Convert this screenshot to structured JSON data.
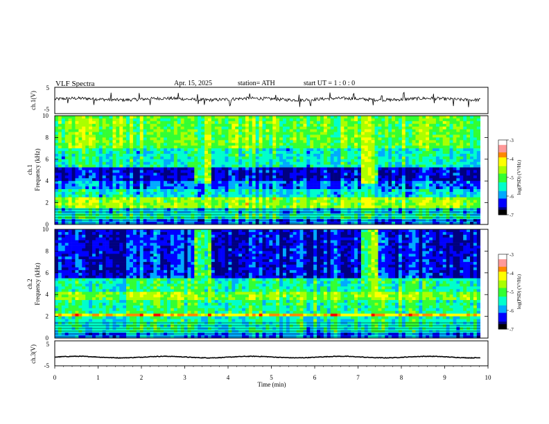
{
  "header": {
    "title": "VLF  Spectra",
    "date": "Apr. 15, 2025",
    "station": "station= ATH",
    "start": "start  UT  =    1  : 0  : 0"
  },
  "colors": {
    "spectrogram_scale": [
      "#000080",
      "#0000ff",
      "#00aaff",
      "#00ffcc",
      "#33ff33",
      "#aaff00",
      "#ffff00",
      "#ff8800",
      "#ff0000",
      "#ffffff"
    ],
    "waveform": "#000000"
  },
  "chart_data": [
    {
      "type": "line",
      "name": "ch1-waveform",
      "ylabel": "ch.1(V)",
      "ylim": [
        -5,
        5
      ],
      "yticks": [
        "5",
        "-5"
      ],
      "xlim": [
        0,
        10
      ],
      "baseline": 0.5,
      "noise_amplitude": 0.6,
      "spikes_at_min": [
        0.3,
        0.9,
        1.3,
        1.95,
        2.2,
        2.85,
        3.3,
        3.45,
        4.05,
        4.5,
        5.1,
        5.65,
        5.9,
        6.35,
        6.9,
        7.35,
        7.55,
        8.05,
        8.75,
        9.2,
        9.55
      ]
    },
    {
      "type": "heatmap",
      "name": "ch1-spectrogram",
      "ylabel": "ch.1\nFrequency  (kHz)",
      "xlim": [
        0,
        10
      ],
      "data_end_min": 9.82,
      "ylim": [
        0,
        10
      ],
      "yticks": [
        "0",
        "2",
        "4",
        "6",
        "8",
        "10"
      ],
      "colorbar": {
        "label": "log(PSD) (V²/Hz)",
        "range": [
          -7,
          -3
        ],
        "ticks": [
          "-3",
          "-4",
          "-5",
          "-6",
          "-7"
        ]
      },
      "bands_khz": [
        {
          "f": [
            0.0,
            0.4
          ],
          "level": -6.0
        },
        {
          "f": [
            0.4,
            0.9
          ],
          "level": -5.3
        },
        {
          "f": [
            0.9,
            1.6
          ],
          "level": -5.6
        },
        {
          "f": [
            1.6,
            2.4
          ],
          "level": -4.6
        },
        {
          "f": [
            2.4,
            3.2
          ],
          "level": -5.5
        },
        {
          "f": [
            3.2,
            4.0
          ],
          "level": -6.0
        },
        {
          "f": [
            4.0,
            5.2
          ],
          "level": -6.5
        },
        {
          "f": [
            5.2,
            7.0
          ],
          "level": -5.4
        },
        {
          "f": [
            7.0,
            10.0
          ],
          "level": -4.8
        }
      ],
      "bursts": [
        {
          "t": [
            3.25,
            3.6
          ],
          "f": [
            3.7,
            10.0
          ],
          "level": -4.9
        },
        {
          "t": [
            7.05,
            7.45
          ],
          "f": [
            3.7,
            10.0
          ],
          "level": -4.8
        }
      ]
    },
    {
      "type": "heatmap",
      "name": "ch2-spectrogram",
      "ylabel": "ch.2\nFrequency  (kHz)",
      "xlim": [
        0,
        10
      ],
      "data_end_min": 9.82,
      "ylim": [
        0,
        10
      ],
      "yticks": [
        "0",
        "2",
        "4",
        "6",
        "8",
        "10"
      ],
      "colorbar": {
        "label": "log(PSD) (V²/Hz)",
        "range": [
          -7,
          -3
        ],
        "ticks": [
          "-3",
          "-4",
          "-5",
          "-6",
          "-7"
        ]
      },
      "bands_khz": [
        {
          "f": [
            0.0,
            0.4
          ],
          "level": -6.0
        },
        {
          "f": [
            0.4,
            1.9
          ],
          "level": -5.4
        },
        {
          "f": [
            1.9,
            2.3
          ],
          "level": -3.9
        },
        {
          "f": [
            2.3,
            3.4
          ],
          "level": -5.2
        },
        {
          "f": [
            3.4,
            4.2
          ],
          "level": -4.7
        },
        {
          "f": [
            4.2,
            5.6
          ],
          "level": -5.3
        },
        {
          "f": [
            5.6,
            10.0
          ],
          "level": -6.4
        }
      ],
      "bursts": [
        {
          "t": [
            3.25,
            3.6
          ],
          "f": [
            4.0,
            10.0
          ],
          "level": -5.0
        },
        {
          "t": [
            7.05,
            7.45
          ],
          "f": [
            4.0,
            10.0
          ],
          "level": -4.9
        }
      ]
    },
    {
      "type": "line",
      "name": "ch3-waveform",
      "ylabel": "ch.3(V)",
      "ylim": [
        -5,
        5
      ],
      "yticks": [
        "5",
        "-5"
      ],
      "xlim": [
        0,
        10
      ],
      "baseline": -1.5,
      "noise_amplitude": 0.12,
      "xlabel": "Time  (min)",
      "xticks": [
        "0",
        "1",
        "2",
        "3",
        "4",
        "5",
        "6",
        "7",
        "8",
        "9",
        "10"
      ]
    }
  ]
}
